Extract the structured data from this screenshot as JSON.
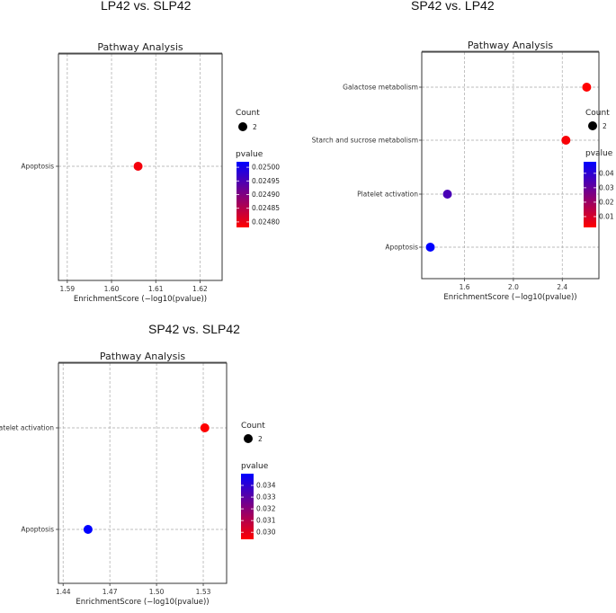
{
  "chart_data": [
    {
      "type": "scatter",
      "panel_title": "LP42 vs. SLP42",
      "title": "Pathway Analysis",
      "xlabel": "EnrichmentScore (−log10(pvalue))",
      "ylabel": "",
      "xlim": [
        1.588,
        1.625
      ],
      "xticks": [
        "1.59",
        "1.60",
        "1.61",
        "1.62"
      ],
      "xtick_values": [
        1.59,
        1.6,
        1.61,
        1.62
      ],
      "categories": [
        "Apoptosis"
      ],
      "points": [
        {
          "pathway": "Apoptosis",
          "x": 1.606,
          "pvalue": 0.02479,
          "count": 2
        }
      ],
      "count_legend": {
        "title": "Count",
        "label": "2"
      },
      "pvalue_legend": {
        "title": "pvalue",
        "ticks": [
          "0.02500",
          "0.02495",
          "0.02490",
          "0.02485",
          "0.02480"
        ],
        "tick_values": [
          0.025,
          0.02495,
          0.0249,
          0.02485,
          0.0248
        ],
        "range": [
          0.02478,
          0.02502
        ]
      },
      "colors": {
        "low": "#ff0000",
        "high": "#0000ff"
      }
    },
    {
      "type": "scatter",
      "panel_title": "SP42 vs. LP42",
      "title": "Pathway Analysis",
      "xlabel": "EnrichmentScore (−log10(pvalue))",
      "ylabel": "",
      "xlim": [
        1.25,
        2.7
      ],
      "xticks": [
        "1.6",
        "2.0",
        "2.4"
      ],
      "xtick_values": [
        1.6,
        2.0,
        2.4
      ],
      "categories": [
        "Galactose metabolism",
        "Starch and sucrose metabolism",
        "Platelet activation",
        "Apoptosis"
      ],
      "points": [
        {
          "pathway": "Galactose metabolism",
          "x": 2.6,
          "pvalue": 0.0025,
          "count": 2
        },
        {
          "pathway": "Starch and sucrose metabolism",
          "x": 2.43,
          "pvalue": 0.0037,
          "count": 2
        },
        {
          "pathway": "Platelet activation",
          "x": 1.46,
          "pvalue": 0.035,
          "count": 2
        },
        {
          "pathway": "Apoptosis",
          "x": 1.32,
          "pvalue": 0.048,
          "count": 2
        }
      ],
      "count_legend": {
        "title": "Count",
        "label": "2"
      },
      "pvalue_legend": {
        "title": "pvalue",
        "ticks": [
          "0.04",
          "0.03",
          "0.02",
          "0.01"
        ],
        "tick_values": [
          0.04,
          0.03,
          0.02,
          0.01
        ],
        "range": [
          0.0025,
          0.048
        ]
      },
      "colors": {
        "low": "#ff0000",
        "high": "#0000ff"
      }
    },
    {
      "type": "scatter",
      "panel_title": "SP42 vs. SLP42",
      "title": "Pathway Analysis",
      "xlabel": "EnrichmentScore (−log10(pvalue))",
      "ylabel": "",
      "xlim": [
        1.437,
        1.545
      ],
      "xticks": [
        "1.44",
        "1.47",
        "1.50",
        "1.53"
      ],
      "xtick_values": [
        1.44,
        1.47,
        1.5,
        1.53
      ],
      "categories": [
        "Platelet activation",
        "Apoptosis"
      ],
      "points": [
        {
          "pathway": "Platelet activation",
          "x": 1.531,
          "pvalue": 0.0294,
          "count": 2
        },
        {
          "pathway": "Apoptosis",
          "x": 1.456,
          "pvalue": 0.035,
          "count": 2
        }
      ],
      "count_legend": {
        "title": "Count",
        "label": "2"
      },
      "pvalue_legend": {
        "title": "pvalue",
        "ticks": [
          "0.034",
          "0.033",
          "0.032",
          "0.031",
          "0.030"
        ],
        "tick_values": [
          0.034,
          0.033,
          0.032,
          0.031,
          0.03
        ],
        "range": [
          0.0294,
          0.035
        ]
      },
      "colors": {
        "low": "#ff0000",
        "high": "#0000ff"
      }
    }
  ]
}
